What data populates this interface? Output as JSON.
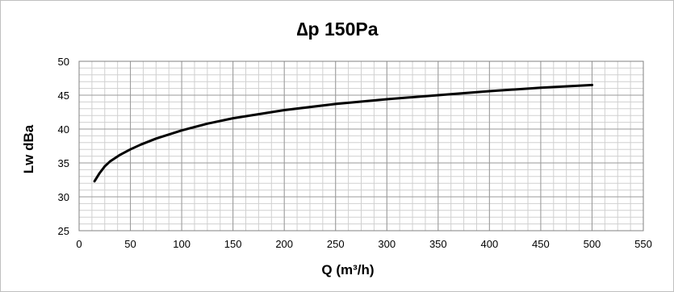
{
  "chart_data": {
    "type": "line",
    "title": "∆p 150Pa",
    "xlabel": "Q (m³/h)",
    "ylabel": "Lw dBa",
    "xlim": [
      0,
      550
    ],
    "ylim": [
      25,
      50
    ],
    "x_ticks": [
      0,
      50,
      100,
      150,
      200,
      250,
      300,
      350,
      400,
      450,
      500,
      550
    ],
    "y_ticks": [
      25,
      30,
      35,
      40,
      45,
      50
    ],
    "x_minor_step": 12.5,
    "y_minor_step": 1,
    "grid": true,
    "series": [
      {
        "color": "#000000",
        "x": [
          15,
          20,
          25,
          30,
          40,
          50,
          60,
          75,
          100,
          125,
          150,
          200,
          250,
          300,
          350,
          400,
          450,
          500
        ],
        "y": [
          32.3,
          33.5,
          34.5,
          35.2,
          36.2,
          37.0,
          37.7,
          38.6,
          39.8,
          40.8,
          41.6,
          42.8,
          43.7,
          44.4,
          45.0,
          45.6,
          46.1,
          46.5
        ]
      }
    ]
  }
}
